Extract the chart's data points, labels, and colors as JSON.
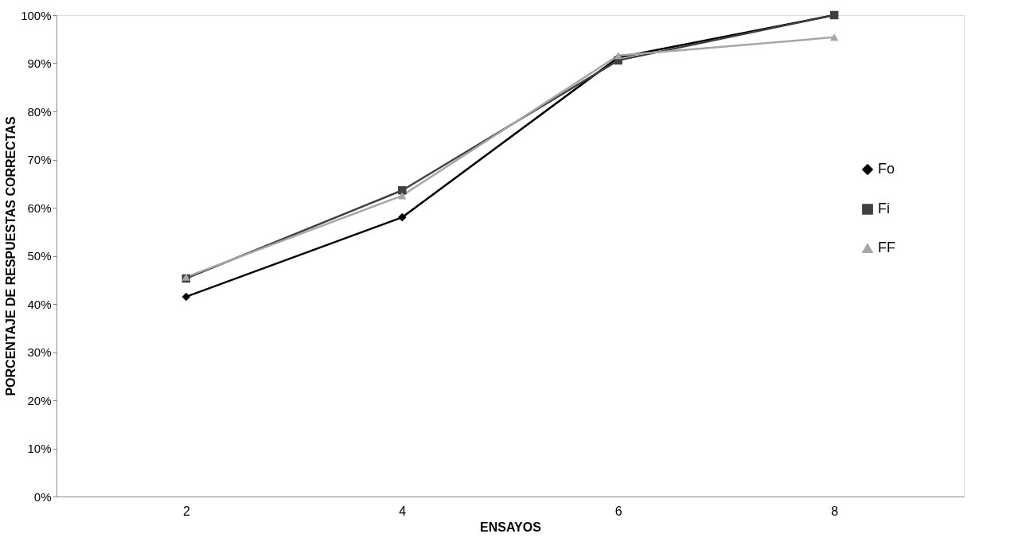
{
  "chart_data": {
    "type": "line",
    "xlabel": "ENSAYOS",
    "ylabel": "PORCENTAJE DE RESPUESTAS CORRECTAS",
    "categories": [
      "2",
      "4",
      "6",
      "8"
    ],
    "series": [
      {
        "name": "Fo",
        "color": "#000000",
        "marker": "diamond",
        "values": [
          41.5,
          58,
          91.2,
          100
        ]
      },
      {
        "name": "Fi",
        "color": "#404040",
        "marker": "square",
        "values": [
          45.3,
          63.6,
          90.6,
          100
        ]
      },
      {
        "name": "FF",
        "color": "#a6a6a6",
        "marker": "triangle",
        "values": [
          45.6,
          62.5,
          91.6,
          95.4
        ]
      }
    ],
    "ylim": [
      0,
      100
    ],
    "yticks": [
      {
        "value": 0,
        "label": "0%"
      },
      {
        "value": 10,
        "label": "10%"
      },
      {
        "value": 20,
        "label": "20%"
      },
      {
        "value": 30,
        "label": "30%"
      },
      {
        "value": 40,
        "label": "40%"
      },
      {
        "value": 50,
        "label": "50%"
      },
      {
        "value": 60,
        "label": "60%"
      },
      {
        "value": 70,
        "label": "70%"
      },
      {
        "value": 80,
        "label": "80%"
      },
      {
        "value": 90,
        "label": "90%"
      },
      {
        "value": 100,
        "label": "100%"
      }
    ],
    "grid": false,
    "legend": "right",
    "line_style": "solid"
  }
}
